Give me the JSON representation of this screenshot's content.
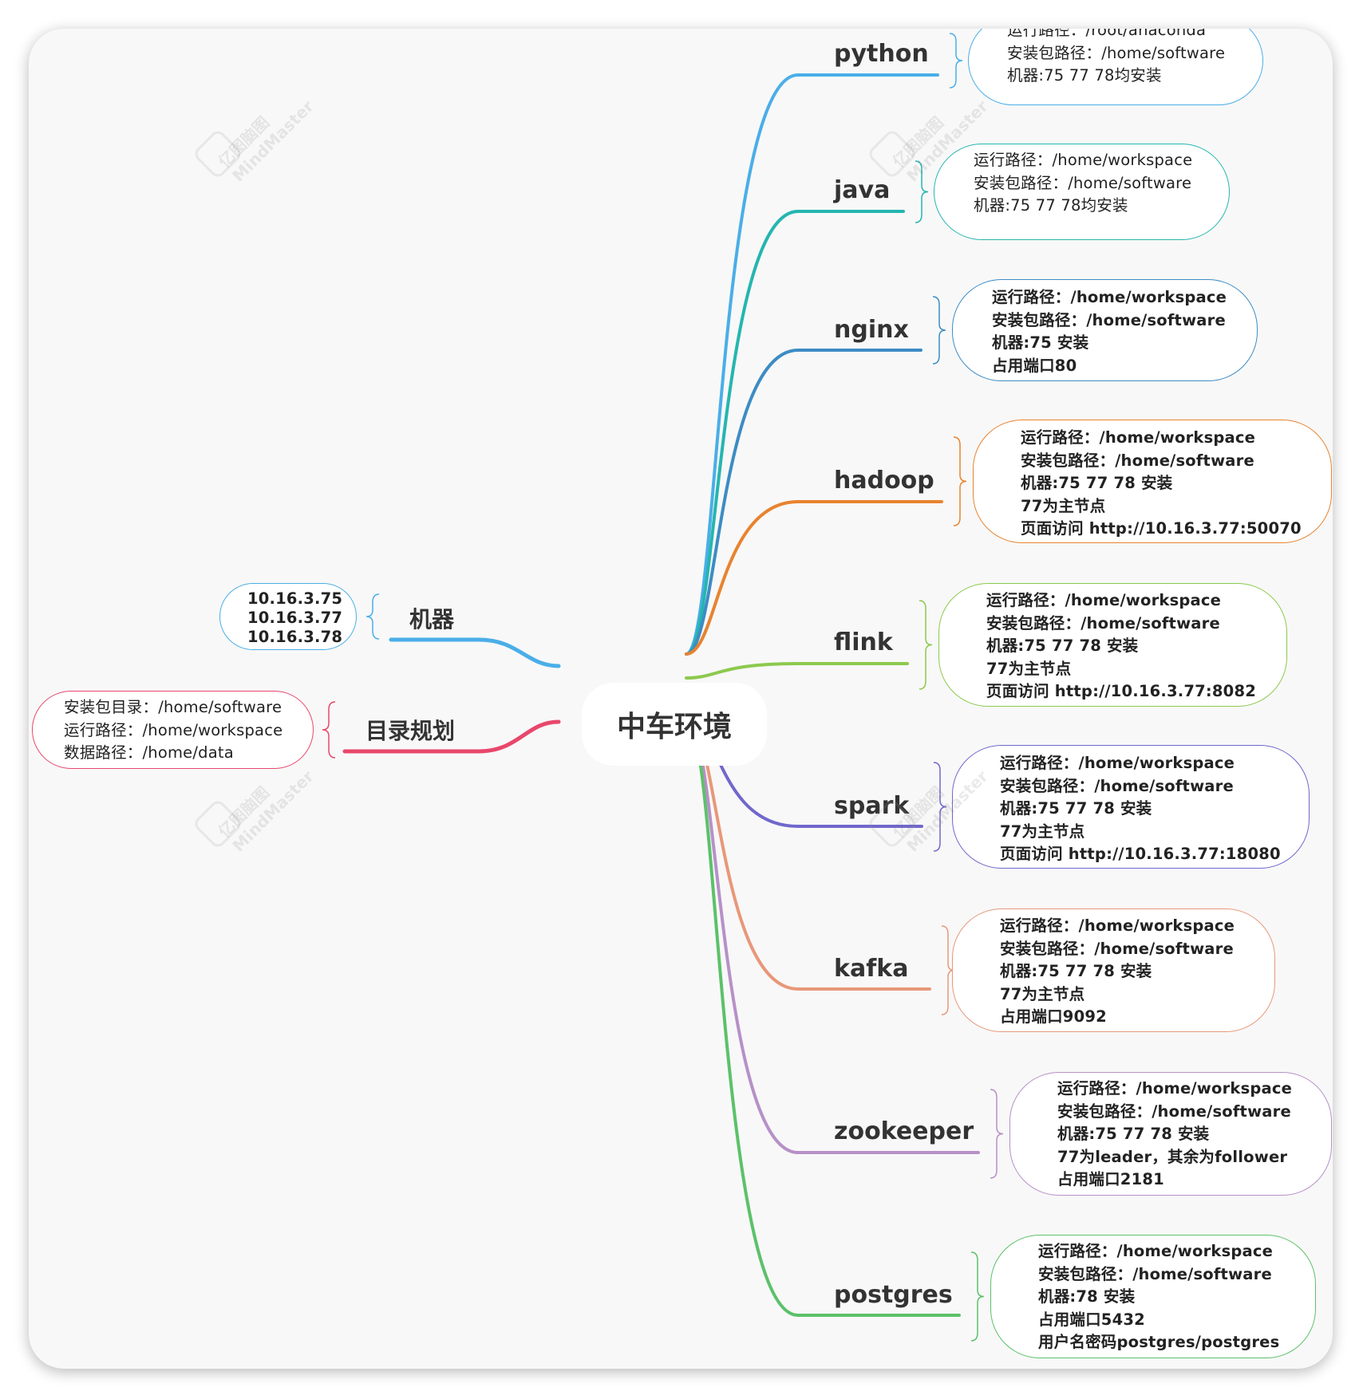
{
  "center": {
    "label": "中车环境"
  },
  "left_branches": [
    {
      "id": "machines",
      "label": "机器",
      "color": "#4aaee8",
      "details": [
        "10.16.3.75",
        "10.16.3.77",
        "10.16.3.78"
      ],
      "bold": true
    },
    {
      "id": "directory",
      "label": "目录规划",
      "color": "#e8476b",
      "details": [
        "安装包目录：/home/software",
        "运行路径：/home/workspace",
        "数据路径：/home/data"
      ],
      "bold": false
    }
  ],
  "right_branches": [
    {
      "id": "python",
      "label": "python",
      "color": "#4aaee8",
      "details": [
        "运行路径：/root/anaconda",
        "安装包路径：/home/software",
        "机器:75 77 78均安装"
      ],
      "bold": false
    },
    {
      "id": "java",
      "label": "java",
      "color": "#26b5b0",
      "details": [
        "运行路径：/home/workspace",
        "安装包路径：/home/software",
        "机器:75 77 78均安装"
      ],
      "bold": false
    },
    {
      "id": "nginx",
      "label": "nginx",
      "color": "#3d8cc4",
      "details": [
        "运行路径：/home/workspace",
        "安装包路径：/home/software",
        "机器:75 安装",
        "占用端口80"
      ],
      "bold": true
    },
    {
      "id": "hadoop",
      "label": "hadoop",
      "color": "#e8832e",
      "details": [
        "运行路径：/home/workspace",
        "安装包路径：/home/software",
        "机器:75 77 78 安装",
        "77为主节点",
        "页面访问 http://10.16.3.77:50070"
      ],
      "bold": true
    },
    {
      "id": "flink",
      "label": "flink",
      "color": "#8cc94e",
      "details": [
        "运行路径：/home/workspace",
        "安装包路径：/home/software",
        "机器:75 77 78 安装",
        "77为主节点",
        "页面访问 http://10.16.3.77:8082"
      ],
      "bold": true
    },
    {
      "id": "spark",
      "label": "spark",
      "color": "#7068cc",
      "details": [
        "运行路径：/home/workspace",
        "安装包路径：/home/software",
        "机器:75 77 78 安装",
        "77为主节点",
        "页面访问 http://10.16.3.77:18080"
      ],
      "bold": true
    },
    {
      "id": "kafka",
      "label": "kafka",
      "color": "#e8987a",
      "details": [
        "运行路径：/home/workspace",
        "安装包路径：/home/software",
        "机器:75 77 78 安装",
        "77为主节点",
        "占用端口9092"
      ],
      "bold": true
    },
    {
      "id": "zookeeper",
      "label": "zookeeper",
      "color": "#b790c8",
      "details": [
        "运行路径：/home/workspace",
        "安装包路径：/home/software",
        "机器:75 77 78 安装",
        "77为leader，其余为follower",
        "占用端口2181"
      ],
      "bold": true
    },
    {
      "id": "postgres",
      "label": "postgres",
      "color": "#5cc16a",
      "details": [
        "运行路径：/home/workspace",
        "安装包路径：/home/software",
        "机器:78 安装",
        "占用端口5432",
        "用户名密码postgres/postgres"
      ],
      "bold": true
    }
  ],
  "watermark": {
    "brand_cn": "亿图脑图",
    "brand_en": "MindMaster"
  }
}
